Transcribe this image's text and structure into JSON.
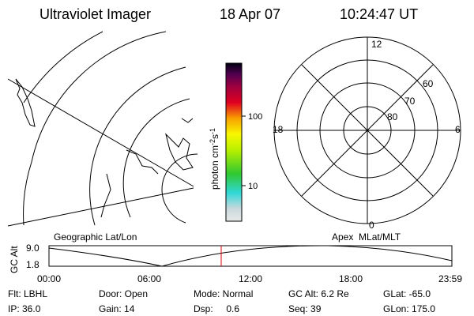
{
  "header": {
    "instrument": "Ultraviolet Imager",
    "date": "18 Apr 07",
    "time": "10:24:47 UT"
  },
  "colorbar": {
    "unit": "photon cm",
    "exp1": "-2",
    "unit2": "s",
    "exp2": "-1",
    "tick_labels": [
      "100",
      "10"
    ]
  },
  "polar": {
    "mlt_labels": [
      "12",
      "6",
      "18",
      "0"
    ],
    "mlat_labels": [
      "80",
      "70",
      "60"
    ]
  },
  "altitude_plot": {
    "left_title": "Geographic Lat/Lon",
    "right_title": "Apex  MLat/MLT",
    "y_label": "GC Alt",
    "y_tick_labels": [
      "9.0",
      "1.8"
    ],
    "x_tick_labels": [
      "00:00",
      "06:00",
      "12:00",
      "18:00",
      "23:59"
    ]
  },
  "info": {
    "rows": [
      [
        "Flt: LBHL",
        "Door: Open",
        "Mode: Normal",
        "GC Alt: 6.2 Re",
        "GLat: -65.0"
      ],
      [
        "IP: 36.0",
        "Gain: 14",
        "Dsp:     0.6",
        "Seq: 39",
        "GLon: 175.0"
      ]
    ]
  }
}
